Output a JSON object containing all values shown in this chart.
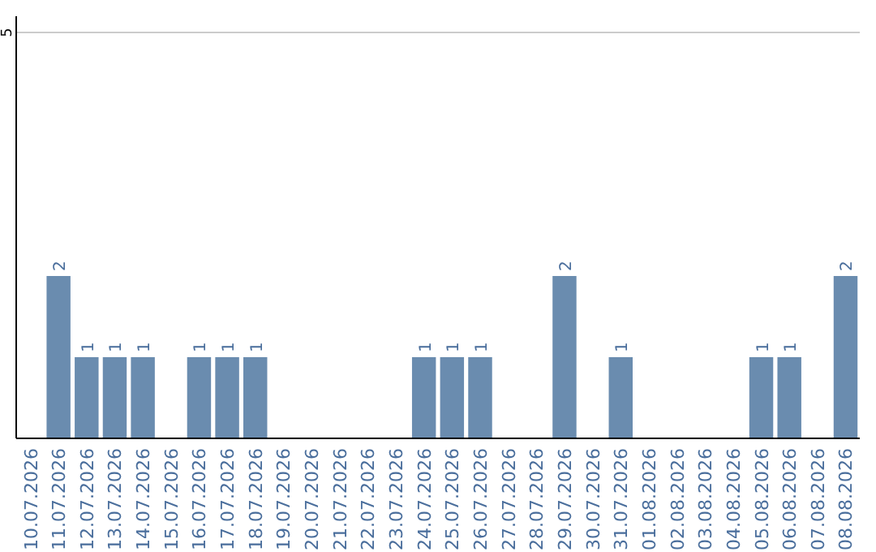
{
  "chart_data": {
    "type": "bar",
    "categories": [
      "10.07.2026",
      "11.07.2026",
      "12.07.2026",
      "13.07.2026",
      "14.07.2026",
      "15.07.2026",
      "16.07.2026",
      "17.07.2026",
      "18.07.2026",
      "19.07.2026",
      "20.07.2026",
      "21.07.2026",
      "22.07.2026",
      "23.07.2026",
      "24.07.2026",
      "25.07.2026",
      "26.07.2026",
      "27.07.2026",
      "28.07.2026",
      "29.07.2026",
      "30.07.2026",
      "31.07.2026",
      "01.08.2026",
      "02.08.2026",
      "03.08.2026",
      "04.08.2026",
      "05.08.2026",
      "06.08.2026",
      "07.08.2026",
      "08.08.2026"
    ],
    "values": [
      0,
      2,
      1,
      1,
      1,
      0,
      1,
      1,
      1,
      0,
      0,
      0,
      0,
      0,
      1,
      1,
      1,
      0,
      0,
      2,
      0,
      1,
      0,
      0,
      0,
      0,
      1,
      1,
      0,
      2
    ],
    "value_labels": [
      null,
      "2",
      "1",
      "1",
      "1",
      null,
      "1",
      "1",
      "1",
      null,
      null,
      null,
      null,
      null,
      "1",
      "1",
      "1",
      null,
      null,
      "2",
      null,
      "1",
      null,
      null,
      null,
      null,
      "1",
      "1",
      null,
      "2"
    ],
    "color": "#6a8caf",
    "ylim": [
      0,
      5.2
    ],
    "yticks": [
      5
    ],
    "grid": "y"
  }
}
